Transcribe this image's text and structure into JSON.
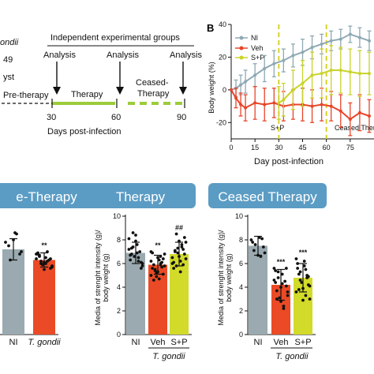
{
  "timeline": {
    "left_fragments": [
      "ondii",
      "49",
      "yst"
    ],
    "header": "Independent experimental groups",
    "analysis_label": "Analysis",
    "phases": [
      "Pre-therapy",
      "Therapy",
      "Ceased-Therapy"
    ],
    "phase_ceased_lines": [
      "Ceased-",
      "Therapy"
    ],
    "days": [
      "30",
      "60",
      "90"
    ],
    "xlabel": "Days post-infection"
  },
  "panel_b": {
    "label": "B",
    "legend": [
      "NI",
      "Veh",
      "S+P"
    ],
    "ylabel": "Body weight (%)",
    "xlabel": "Day post-infection",
    "annotations": [
      "S+P",
      "Ceased Ther"
    ],
    "colors": {
      "NI": "#8fa9b3",
      "Veh": "#e8452a",
      "S+P": "#c9d32a",
      "vline": "#d8d22a"
    }
  },
  "bar_panels": [
    {
      "title": "e-Therapy",
      "ylabel_lines": [],
      "groups": [
        "NI",
        "T. gondii"
      ],
      "subgroup_label": "",
      "stars": [
        "",
        "**"
      ]
    },
    {
      "title": "Therapy",
      "ylabel_lines": [
        "Media of strenght intensity (g)/",
        "body weight (g)"
      ],
      "groups": [
        "NI",
        "Veh",
        "S+P"
      ],
      "subgroup_label": "T. gondii",
      "stars": [
        "",
        "**",
        "##"
      ]
    },
    {
      "title": "Ceased Therapy",
      "ylabel_lines": [
        "Media of strenght intensity (g)/",
        "body weight (g)"
      ],
      "groups": [
        "NI",
        "Veh",
        "S+P"
      ],
      "subgroup_label": "T. gondii",
      "stars": [
        "",
        "***",
        "***"
      ]
    }
  ],
  "colors": {
    "pill": "#5b9cc4",
    "ni": "#9aaab0",
    "veh": "#ea4a25",
    "sp": "#d2da2a",
    "green_line": "#9ccc3a"
  },
  "chart_data": [
    {
      "type": "line",
      "xlabel": "Day post-infection",
      "ylabel": "Body weight (%)",
      "xlim": [
        0,
        90
      ],
      "ylim": [
        -30,
        40
      ],
      "x_ticks": [
        0,
        15,
        30,
        45,
        60,
        75
      ],
      "y_ticks": [
        -20,
        0,
        20,
        40
      ],
      "legend": "top-left",
      "vlines": [
        30,
        60
      ],
      "annotations": [
        "S+P",
        "Ceased Ther"
      ],
      "series": [
        {
          "name": "NI",
          "x": [
            0,
            3,
            6,
            9,
            15,
            21,
            27,
            33,
            39,
            45,
            51,
            57,
            63,
            69,
            75,
            81,
            87
          ],
          "y": [
            0,
            1,
            3,
            5,
            9,
            13,
            16,
            18,
            21,
            23,
            26,
            28,
            30,
            31,
            34,
            32,
            30
          ],
          "err": [
            0,
            5,
            6,
            7,
            7,
            8,
            8,
            7,
            7,
            8,
            7,
            6,
            6,
            6,
            5,
            6,
            6
          ]
        },
        {
          "name": "Veh",
          "x": [
            0,
            3,
            6,
            9,
            15,
            21,
            27,
            33,
            39,
            45,
            51,
            57,
            63,
            69,
            75,
            81,
            87
          ],
          "y": [
            0,
            -5,
            -9,
            -11,
            -8,
            -9,
            -8,
            -10,
            -9,
            -9,
            -10,
            -9,
            -10,
            -13,
            -18,
            -14,
            -16
          ],
          "err": [
            0,
            6,
            7,
            8,
            10,
            10,
            9,
            9,
            9,
            10,
            10,
            10,
            9,
            10,
            10,
            11,
            10
          ]
        },
        {
          "name": "S+P",
          "x": [
            30,
            33,
            39,
            45,
            51,
            57,
            63,
            69,
            75,
            81,
            87
          ],
          "y": [
            -8,
            -6,
            0,
            4,
            9,
            10,
            12,
            12,
            11,
            10,
            10
          ],
          "err": [
            10,
            10,
            12,
            14,
            14,
            15,
            15,
            14,
            14,
            14,
            13
          ]
        }
      ]
    },
    {
      "type": "bar",
      "title": "e-Therapy",
      "ylim": [
        0,
        10
      ],
      "categories": [
        "NI",
        "T. gondii"
      ],
      "values": [
        7.2,
        6.3
      ],
      "errors": [
        0.9,
        0.6
      ],
      "significance": [
        "",
        "**"
      ],
      "points": [
        [
          7.8,
          8.5,
          6.3,
          7.0,
          8.6,
          7.5,
          6.8,
          8.0
        ],
        [
          6.8,
          6.2,
          6.0,
          5.8,
          6.5,
          6.7,
          5.6,
          6.1,
          6.9,
          6.3,
          5.9,
          6.4,
          7.0,
          6.2,
          5.7,
          6.0,
          6.6,
          6.4,
          5.5,
          6.8
        ]
      ]
    },
    {
      "type": "bar",
      "title": "Therapy",
      "ylim": [
        0,
        10
      ],
      "y_ticks": [
        0,
        2,
        4,
        6,
        8,
        10
      ],
      "categories": [
        "NI",
        "Veh",
        "S+P"
      ],
      "values": [
        6.9,
        5.9,
        6.8
      ],
      "errors": [
        0.9,
        0.8,
        1.0
      ],
      "significance": [
        "",
        "**",
        "##"
      ],
      "points": [
        [
          7.2,
          6.5,
          8.6,
          6.0,
          7.6,
          6.8,
          5.6,
          7.9,
          6.3,
          7.0,
          6.6,
          8.1,
          6.2,
          7.4,
          5.8,
          6.9,
          7.3,
          6.1,
          8.4,
          6.7
        ],
        [
          5.0,
          6.0,
          5.5,
          6.8,
          4.7,
          5.9,
          6.4,
          5.3,
          6.9,
          5.7,
          4.9,
          6.2,
          6.6,
          5.4,
          5.8,
          6.3,
          4.6,
          5.1,
          6.5,
          5.6,
          6.1,
          5.2,
          7.0,
          5.9
        ],
        [
          6.5,
          7.4,
          5.8,
          7.8,
          6.2,
          7.0,
          8.2,
          6.6,
          5.6,
          7.2,
          6.9,
          6.0,
          7.6,
          8.5,
          6.4,
          5.3,
          7.1,
          6.8,
          7.9,
          6.1,
          5.9,
          7.3
        ]
      ]
    },
    {
      "type": "bar",
      "title": "Ceased Therapy",
      "ylim": [
        0,
        10
      ],
      "y_ticks": [
        0,
        2,
        4,
        6,
        8,
        10
      ],
      "categories": [
        "NI",
        "Veh",
        "S+P"
      ],
      "values": [
        7.5,
        4.2,
        4.8
      ],
      "errors": [
        0.8,
        1.3,
        1.2
      ],
      "significance": [
        "",
        "***",
        "***"
      ],
      "points": [
        [
          8.0,
          6.6,
          7.6,
          6.9,
          8.2,
          7.1,
          7.4,
          6.7,
          7.8,
          8.1
        ],
        [
          5.6,
          2.4,
          4.8,
          3.3,
          5.1,
          3.7,
          4.1,
          2.8,
          5.4,
          4.5,
          3.1,
          4.6,
          2.2,
          5.3,
          3.6,
          4.3,
          3.0,
          5.6,
          4.0,
          4.4
        ],
        [
          6.4,
          3.3,
          5.3,
          4.1,
          5.8,
          3.8,
          4.9,
          2.9,
          6.0,
          5.0,
          4.4,
          3.6,
          5.5,
          4.6,
          3.0,
          6.2,
          5.1,
          4.2,
          3.9,
          5.6,
          4.8
        ]
      ]
    }
  ]
}
